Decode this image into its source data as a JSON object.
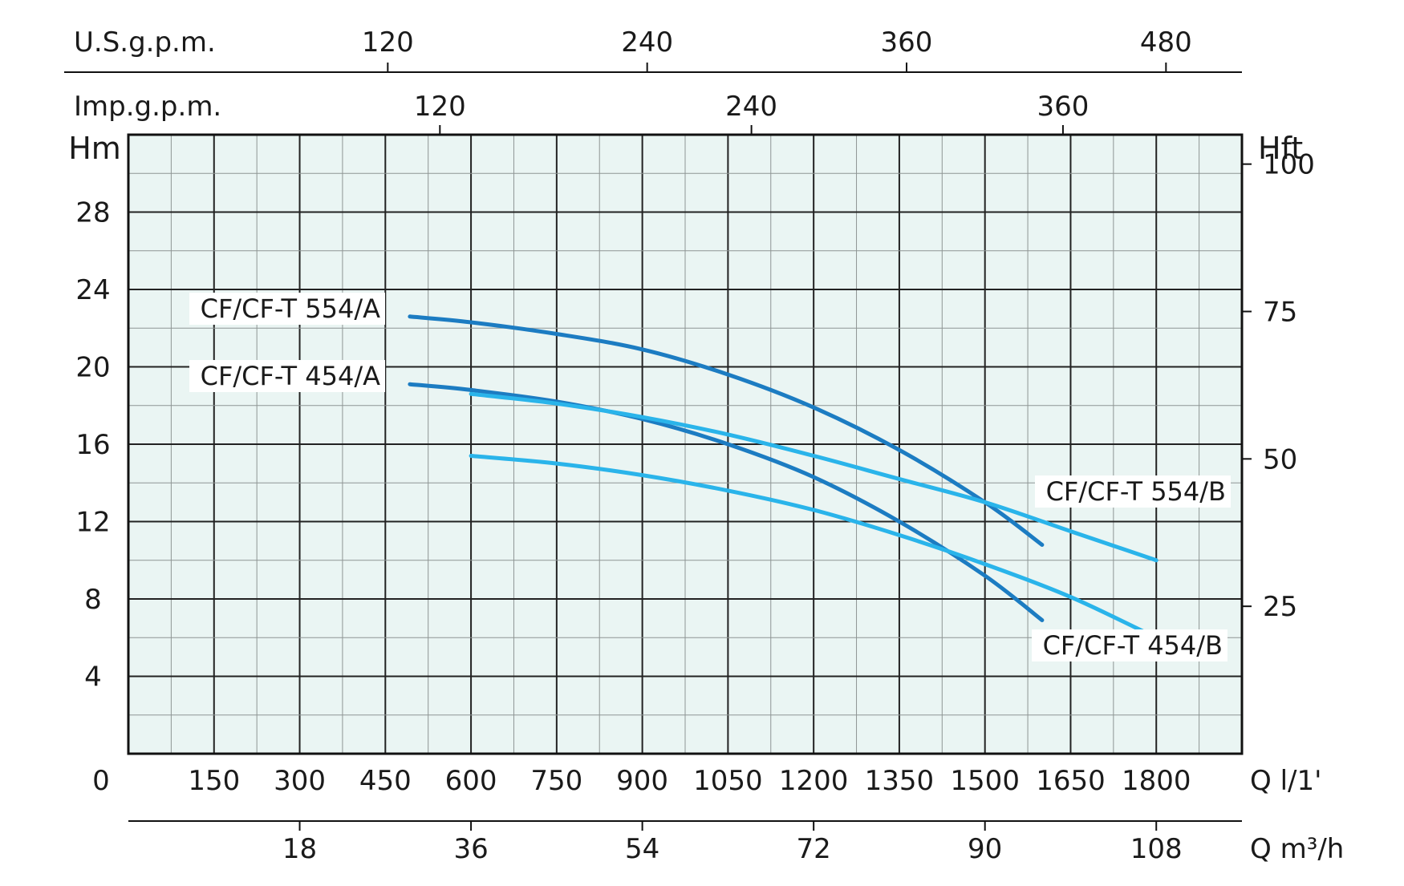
{
  "chart_data": {
    "type": "line",
    "axes": {
      "left": {
        "label": "Hm",
        "ticks": [
          4,
          8,
          12,
          16,
          20,
          24,
          28
        ],
        "range": [
          0,
          32
        ]
      },
      "right": {
        "label": "Hft",
        "ticks": [
          25,
          50,
          75,
          100
        ]
      },
      "bottom_primary": {
        "unit_label": "Q l/1'",
        "origin_label": "0",
        "ticks": [
          150,
          300,
          450,
          600,
          750,
          900,
          1050,
          1200,
          1350,
          1500,
          1650,
          1800
        ],
        "range": [
          0,
          1950
        ]
      },
      "bottom_secondary": {
        "unit_label": "Q m³/h",
        "ticks": [
          18,
          36,
          54,
          72,
          90,
          108
        ]
      },
      "top_us": {
        "label": "U.S.g.p.m.",
        "ticks": [
          120,
          240,
          360,
          480
        ]
      },
      "top_imp": {
        "label": "Imp.g.p.m.",
        "ticks": [
          120,
          240,
          360
        ]
      }
    },
    "grid": true,
    "series": [
      {
        "name": "CF/CF-T 554/A",
        "color": "#1c7cc2",
        "x": [
          493,
          600,
          750,
          900,
          1050,
          1200,
          1350,
          1500,
          1600
        ],
        "y": [
          22.6,
          22.3,
          21.7,
          20.9,
          19.6,
          17.9,
          15.7,
          13.0,
          10.8
        ]
      },
      {
        "name": "CF/CF-T 454/A",
        "color": "#1c7cc2",
        "x": [
          493,
          600,
          750,
          900,
          1050,
          1200,
          1350,
          1500,
          1600
        ],
        "y": [
          19.1,
          18.8,
          18.2,
          17.3,
          16.0,
          14.3,
          12.0,
          9.2,
          6.9
        ]
      },
      {
        "name": "CF/CF-T 554/B",
        "color": "#2ab4ea",
        "x": [
          600,
          750,
          900,
          1050,
          1200,
          1350,
          1500,
          1650,
          1800
        ],
        "y": [
          18.6,
          18.1,
          17.4,
          16.5,
          15.4,
          14.2,
          13.0,
          11.5,
          10.0
        ]
      },
      {
        "name": "CF/CF-T 454/B",
        "color": "#2ab4ea",
        "x": [
          600,
          750,
          900,
          1050,
          1200,
          1350,
          1500,
          1650,
          1800
        ],
        "y": [
          15.4,
          15.0,
          14.4,
          13.6,
          12.6,
          11.3,
          9.8,
          8.1,
          6.0
        ]
      }
    ]
  }
}
